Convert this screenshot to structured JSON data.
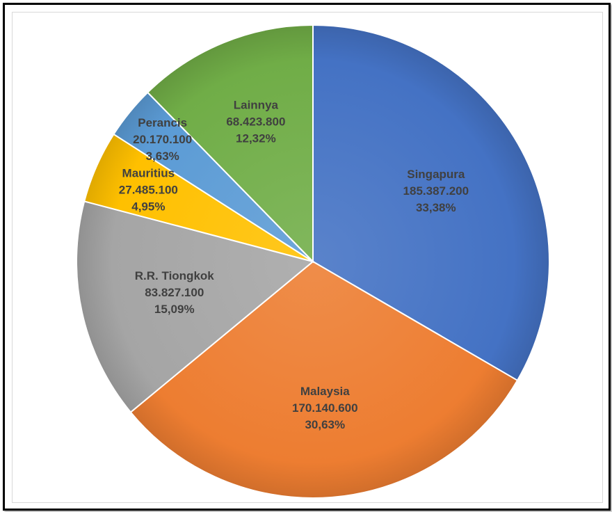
{
  "chart_data": {
    "type": "pie",
    "title": "",
    "slices": [
      {
        "label": "Singapura",
        "value_text": "185.387.200",
        "percent_text": "33,38%",
        "value": 185387200,
        "percent": 33.38,
        "color": "#4472c4"
      },
      {
        "label": "Malaysia",
        "value_text": "170.140.600",
        "percent_text": "30,63%",
        "value": 170140600,
        "percent": 30.63,
        "color": "#ed7d31"
      },
      {
        "label": "R.R. Tiongkok",
        "value_text": "83.827.100",
        "percent_text": "15,09%",
        "value": 83827100,
        "percent": 15.09,
        "color": "#a5a5a5"
      },
      {
        "label": "Mauritius",
        "value_text": "27.485.100",
        "percent_text": "4,95%",
        "value": 27485100,
        "percent": 4.95,
        "color": "#ffc000"
      },
      {
        "label": "Perancis",
        "value_text": "20.170.100",
        "percent_text": "3,63%",
        "value": 20170100,
        "percent": 3.63,
        "color": "#5b9bd5"
      },
      {
        "label": "Lainnya",
        "value_text": "68.423.800",
        "percent_text": "12,32%",
        "value": 68423800,
        "percent": 12.32,
        "color": "#70ad47"
      }
    ],
    "legend": "none",
    "start_angle_deg": 0,
    "direction": "clockwise"
  }
}
